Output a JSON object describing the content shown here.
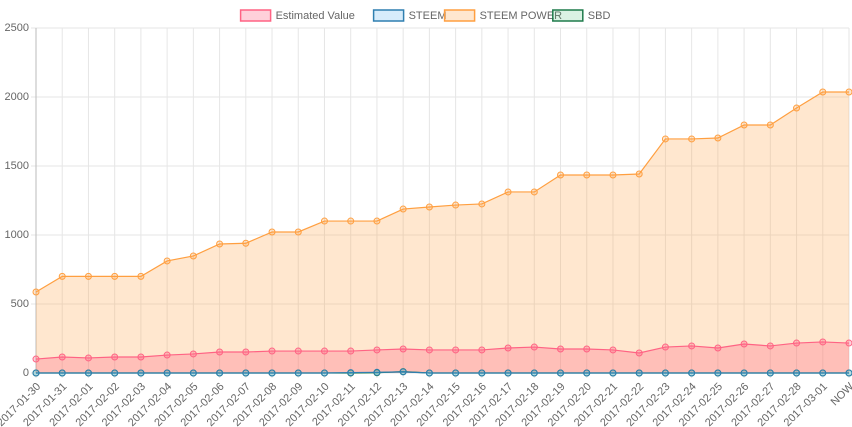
{
  "chart_data": {
    "type": "line",
    "categories": [
      "2017-01-30",
      "2017-01-31",
      "2017-02-01",
      "2017-02-02",
      "2017-02-03",
      "2017-02-04",
      "2017-02-05",
      "2017-02-06",
      "2017-02-07",
      "2017-02-08",
      "2017-02-09",
      "2017-02-10",
      "2017-02-11",
      "2017-02-12",
      "2017-02-13",
      "2017-02-14",
      "2017-02-15",
      "2017-02-16",
      "2017-02-17",
      "2017-02-18",
      "2017-02-19",
      "2017-02-20",
      "2017-02-21",
      "2017-02-22",
      "2017-02-23",
      "2017-02-24",
      "2017-02-25",
      "2017-02-26",
      "2017-02-27",
      "2017-02-28",
      "2017-03-01",
      "NOW"
    ],
    "series": [
      {
        "name": "Estimated Value",
        "color": "#ff6384",
        "fill": "rgba(255,99,132,0.3)",
        "values": [
          101,
          116,
          109,
          116,
          116,
          130,
          138,
          152,
          152,
          159,
          159,
          159,
          159,
          167,
          174,
          167,
          167,
          167,
          181,
          188,
          174,
          174,
          167,
          145,
          188,
          196,
          181,
          210,
          196,
          217,
          225,
          217
        ]
      },
      {
        "name": "STEEM",
        "color": "#2f7fb0",
        "fill": "rgba(54,162,235,0.2)",
        "values": [
          0,
          0,
          0,
          0,
          0,
          0,
          0,
          0,
          0,
          0,
          0,
          0,
          3,
          5,
          8,
          0,
          0,
          0,
          0,
          0,
          0,
          0,
          0,
          0,
          0,
          0,
          0,
          0,
          0,
          0,
          0,
          0
        ]
      },
      {
        "name": "STEEM POWER",
        "color": "#ff9f40",
        "fill": "rgba(255,159,64,0.25)",
        "values": [
          587,
          700,
          700,
          700,
          700,
          812,
          848,
          935,
          940,
          1022,
          1022,
          1101,
          1101,
          1101,
          1188,
          1203,
          1217,
          1225,
          1312,
          1312,
          1435,
          1435,
          1435,
          1442,
          1696,
          1696,
          1703,
          1797,
          1797,
          1920,
          2036,
          2036
        ]
      },
      {
        "name": "SBD",
        "color": "#1e7b4b",
        "fill": "rgba(75,192,120,0.2)",
        "values": [
          0,
          0,
          0,
          0,
          0,
          0,
          0,
          0,
          0,
          0,
          0,
          0,
          0,
          2,
          10,
          0,
          0,
          0,
          0,
          0,
          0,
          0,
          0,
          0,
          0,
          0,
          0,
          0,
          0,
          0,
          0,
          0
        ]
      }
    ],
    "ylim": [
      0,
      2500
    ],
    "yticks": [
      0,
      500,
      1000,
      1500,
      2000,
      2500
    ],
    "grid": true
  }
}
